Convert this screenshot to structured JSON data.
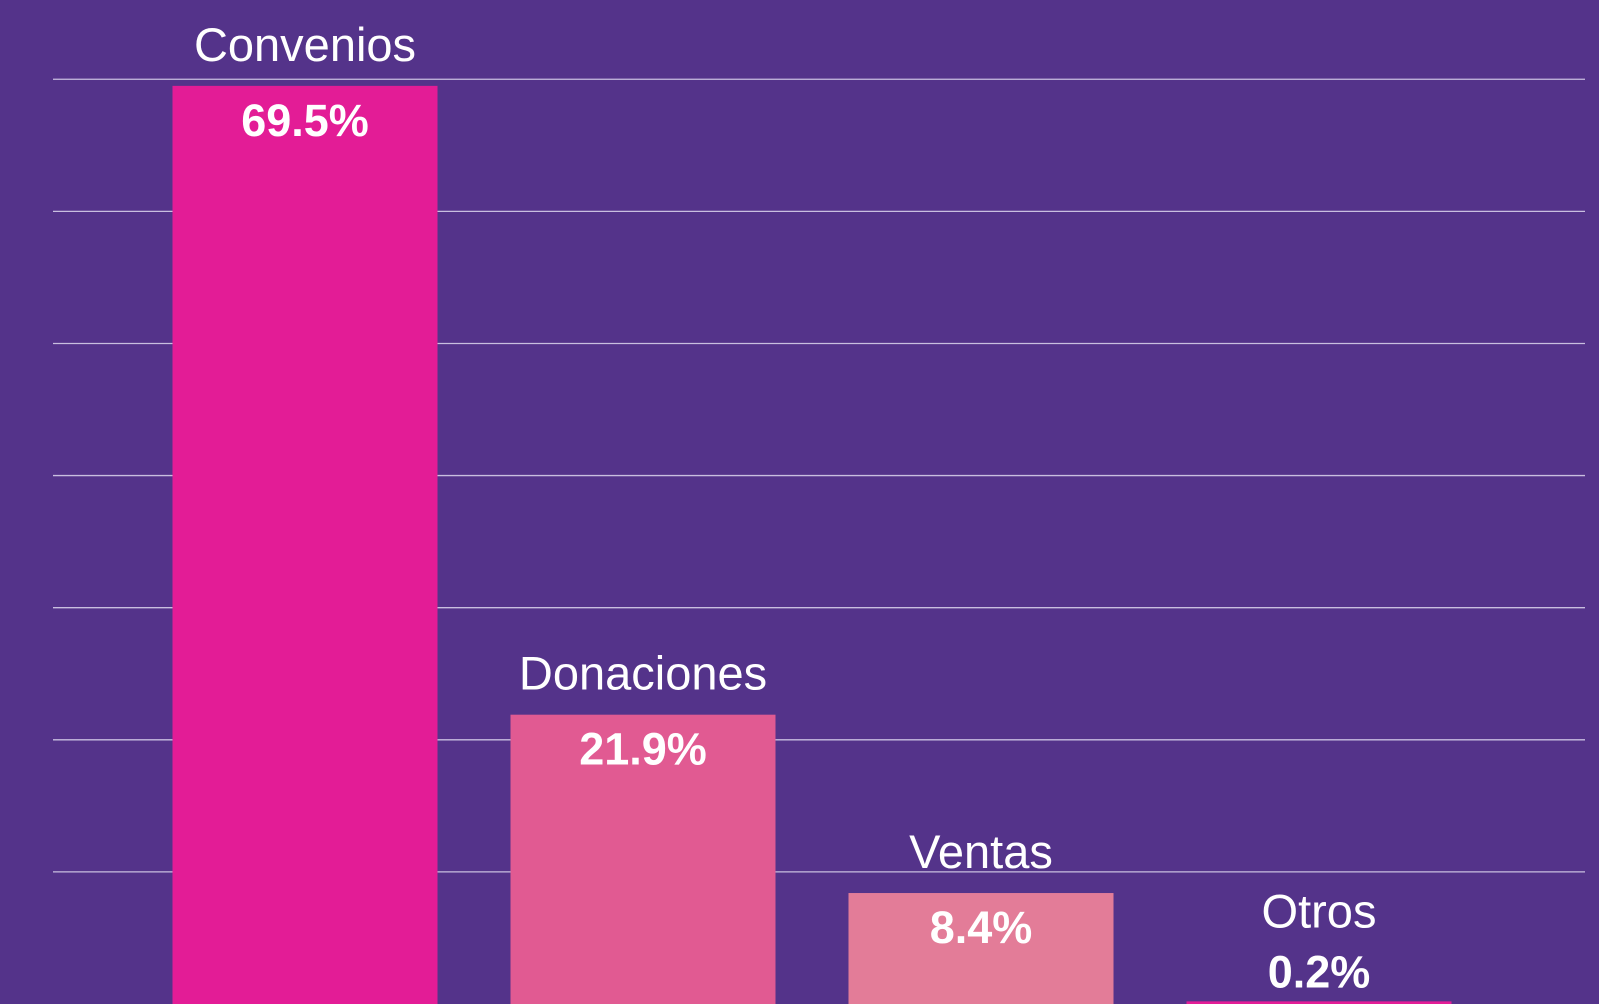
{
  "chart_data": {
    "type": "bar",
    "categories": [
      "Convenios",
      "Donaciones",
      "Ventas",
      "Otros"
    ],
    "values": [
      69.5,
      21.9,
      8.4,
      0.2
    ],
    "value_labels": [
      "69.5%",
      "21.9%",
      "8.4%",
      "0.2%"
    ],
    "colors": [
      "#e31c96",
      "#e15a92",
      "#e37c98",
      "#e31c96"
    ],
    "ylim": [
      0,
      76
    ],
    "yticks": [
      10,
      20,
      30,
      40,
      50,
      60,
      70
    ],
    "grid": true
  }
}
